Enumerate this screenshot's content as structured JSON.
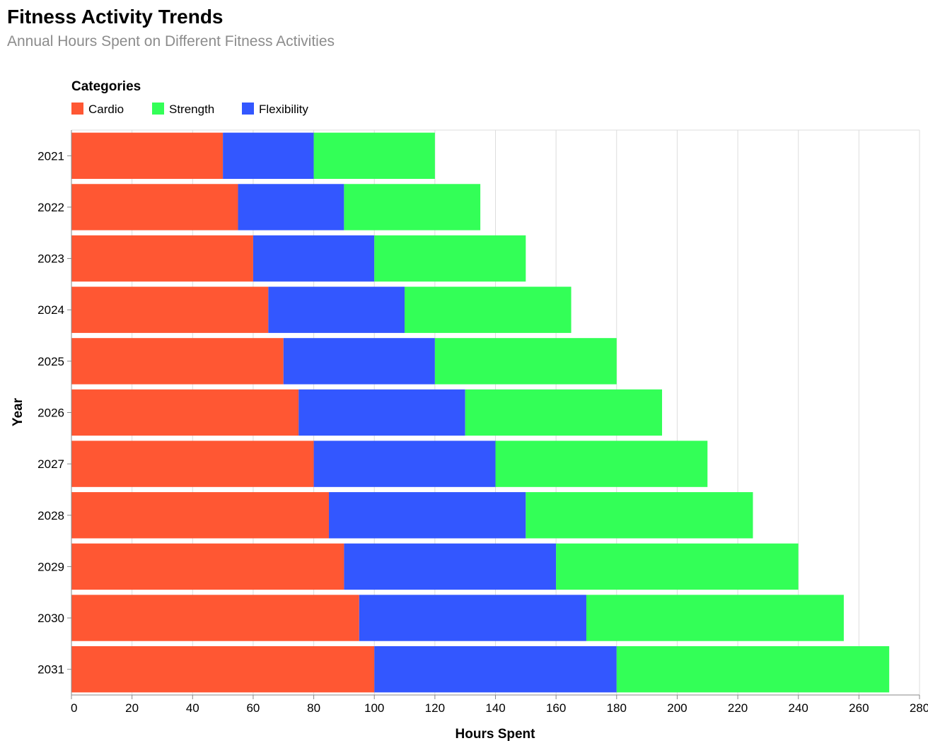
{
  "chart_data": {
    "type": "bar",
    "orientation": "horizontal",
    "stacked": true,
    "title": "Fitness Activity Trends",
    "subtitle": "Annual Hours Spent on Different Fitness Activities",
    "xlabel": "Hours Spent",
    "ylabel": "Year",
    "xlim": [
      0,
      280
    ],
    "x_ticks": [
      0,
      20,
      40,
      60,
      80,
      100,
      120,
      140,
      160,
      180,
      200,
      220,
      240,
      260,
      280
    ],
    "grid": true,
    "legend": {
      "title": "Categories",
      "placement": "top-left",
      "entries": [
        {
          "name": "Cardio",
          "color": "#ff5733"
        },
        {
          "name": "Strength",
          "color": "#33ff57"
        },
        {
          "name": "Flexibility",
          "color": "#3357ff"
        }
      ]
    },
    "categories": [
      "2021",
      "2022",
      "2023",
      "2024",
      "2025",
      "2026",
      "2027",
      "2028",
      "2029",
      "2030",
      "2031"
    ],
    "stack_order": [
      "Cardio",
      "Flexibility",
      "Strength"
    ],
    "series": [
      {
        "name": "Cardio",
        "color": "#ff5733",
        "values": [
          50,
          55,
          60,
          65,
          70,
          75,
          80,
          85,
          90,
          95,
          100
        ]
      },
      {
        "name": "Flexibility",
        "color": "#3357ff",
        "values": [
          30,
          35,
          40,
          45,
          50,
          55,
          60,
          65,
          70,
          75,
          80
        ]
      },
      {
        "name": "Strength",
        "color": "#33ff57",
        "values": [
          40,
          45,
          50,
          55,
          60,
          65,
          70,
          75,
          80,
          85,
          90
        ]
      }
    ]
  }
}
